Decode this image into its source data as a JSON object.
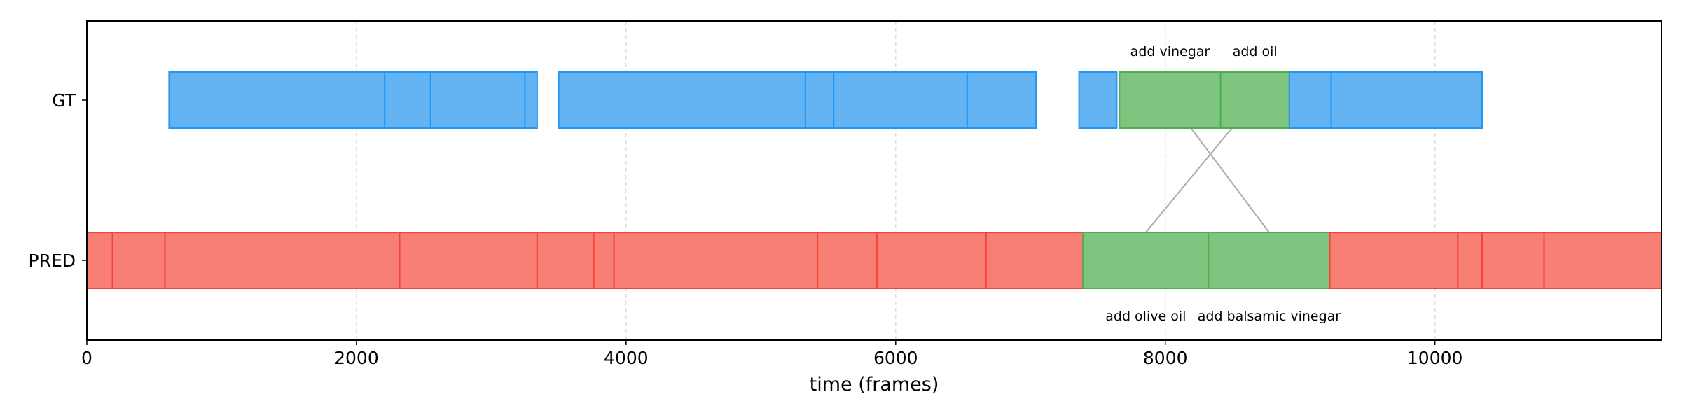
{
  "chart_data": {
    "type": "timeline",
    "title": "",
    "xlabel": "time (frames)",
    "ylabel": "",
    "xlim": [
      0,
      11680
    ],
    "xticks": [
      0,
      2000,
      4000,
      6000,
      8000,
      10000
    ],
    "xtick_labels": [
      "0",
      "2000",
      "4000",
      "6000",
      "8000",
      "10000"
    ],
    "grid": "vertical dashed",
    "rows": [
      {
        "label": "GT",
        "segments": [
          {
            "start": 610,
            "end": 2210,
            "highlight": false
          },
          {
            "start": 2210,
            "end": 2550,
            "highlight": false
          },
          {
            "start": 2550,
            "end": 3250,
            "highlight": false
          },
          {
            "start": 3250,
            "end": 3340,
            "highlight": false
          },
          {
            "start": 3500,
            "end": 5330,
            "highlight": false
          },
          {
            "start": 5330,
            "end": 5540,
            "highlight": false
          },
          {
            "start": 5540,
            "end": 6530,
            "highlight": false
          },
          {
            "start": 6530,
            "end": 7040,
            "highlight": false
          },
          {
            "start": 7360,
            "end": 7640,
            "highlight": false
          },
          {
            "start": 7660,
            "end": 8410,
            "highlight": true,
            "label": "add vinegar"
          },
          {
            "start": 8410,
            "end": 8920,
            "highlight": true,
            "label": "add oil"
          },
          {
            "start": 8920,
            "end": 9230,
            "highlight": false
          },
          {
            "start": 9230,
            "end": 10350,
            "highlight": false
          }
        ]
      },
      {
        "label": "PRED",
        "segments": [
          {
            "start": 0,
            "end": 190,
            "highlight": false
          },
          {
            "start": 190,
            "end": 580,
            "highlight": false
          },
          {
            "start": 580,
            "end": 2320,
            "highlight": false
          },
          {
            "start": 2320,
            "end": 3340,
            "highlight": false
          },
          {
            "start": 3340,
            "end": 3760,
            "highlight": false
          },
          {
            "start": 3760,
            "end": 3910,
            "highlight": false
          },
          {
            "start": 3910,
            "end": 5420,
            "highlight": false
          },
          {
            "start": 5420,
            "end": 5860,
            "highlight": false
          },
          {
            "start": 5860,
            "end": 6670,
            "highlight": false
          },
          {
            "start": 6670,
            "end": 7390,
            "highlight": false
          },
          {
            "start": 7390,
            "end": 8320,
            "highlight": true,
            "label": "add olive oil"
          },
          {
            "start": 8320,
            "end": 9220,
            "highlight": true,
            "label": "add balsamic vinegar"
          },
          {
            "start": 9220,
            "end": 10170,
            "highlight": false
          },
          {
            "start": 10170,
            "end": 10350,
            "highlight": false
          },
          {
            "start": 10350,
            "end": 10810,
            "highlight": false
          },
          {
            "start": 10810,
            "end": 11680,
            "highlight": false
          }
        ]
      }
    ],
    "matches": [
      {
        "gt": 9,
        "pred": 11
      },
      {
        "gt": 10,
        "pred": 10
      }
    ],
    "colors": {
      "gt_fill": "#64b4f4",
      "gt_edge": "#2196f3",
      "pred_fill": "#f77f75",
      "pred_edge": "#f44336",
      "highlight_fill": "#7fc47f",
      "highlight_edge": "#4caf50",
      "match_line": "#aaaaaa",
      "grid": "#dddddd"
    }
  }
}
